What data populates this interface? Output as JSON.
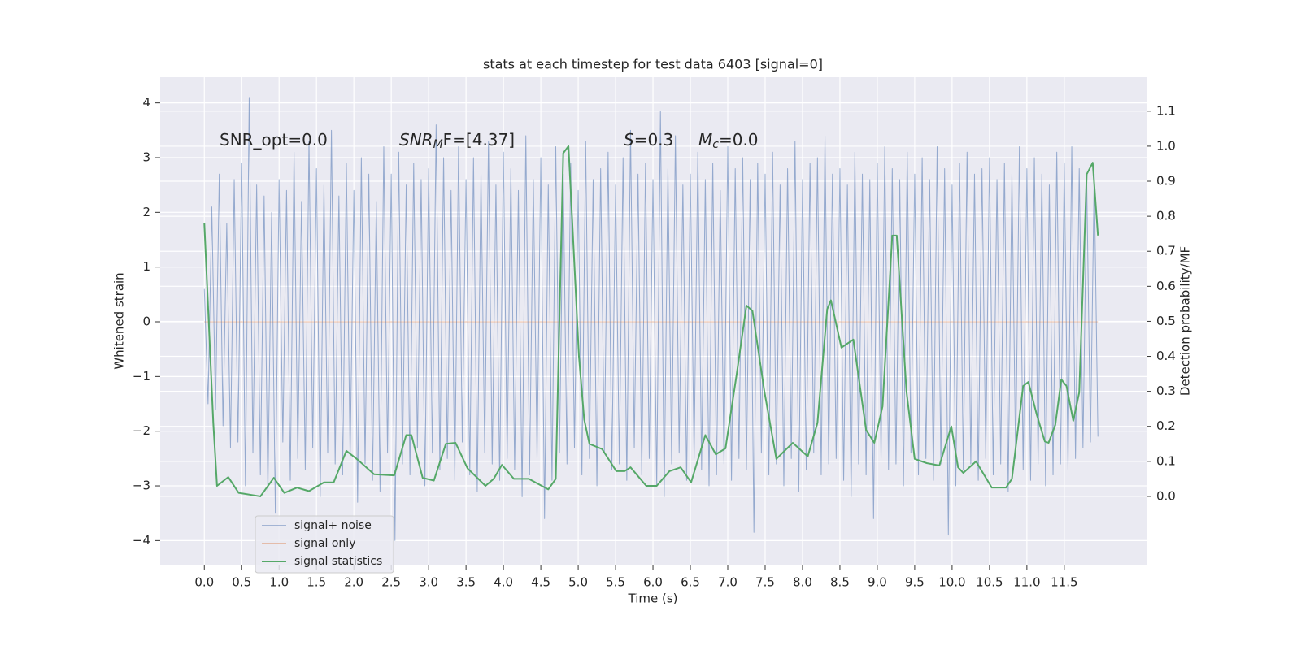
{
  "chart_data": {
    "type": "line",
    "title": "stats at each timestep for test data 6403 [signal=0]",
    "xlabel": "Time (s)",
    "ylabel": "Whitened strain",
    "y2label": "Detection probability/MF",
    "annotations": [
      {
        "base": "SNR_opt=0.0"
      },
      {
        "base": "SNR",
        "sub": "M",
        "rest": "F=[4.37]"
      },
      {
        "base": "S",
        "rest": "=0.3"
      },
      {
        "base": "M",
        "sub": "c",
        "rest": "=0.0"
      }
    ],
    "grid": true,
    "legend": "lower left",
    "xlim": [
      -0.59,
      12.6
    ],
    "ylim": [
      -4.44,
      4.47
    ],
    "y2lim": [
      -0.195,
      1.197
    ],
    "xticks": [
      {
        "value": 0,
        "label": "0.0"
      },
      {
        "value": 0.5,
        "label": "0.5"
      },
      {
        "value": 1,
        "label": "1.0"
      },
      {
        "value": 1.5,
        "label": "1.5"
      },
      {
        "value": 2,
        "label": "2.0"
      },
      {
        "value": 2.5,
        "label": "2.5"
      },
      {
        "value": 3,
        "label": "3.0"
      },
      {
        "value": 3.5,
        "label": "3.5"
      },
      {
        "value": 4,
        "label": "4.0"
      },
      {
        "value": 4.5,
        "label": "4.5"
      },
      {
        "value": 5,
        "label": "5.0"
      },
      {
        "value": 5.5,
        "label": "5.5"
      },
      {
        "value": 6,
        "label": "6.0"
      },
      {
        "value": 6.5,
        "label": "6.5"
      },
      {
        "value": 7,
        "label": "7.0"
      },
      {
        "value": 7.5,
        "label": "7.5"
      },
      {
        "value": 8,
        "label": "8.0"
      },
      {
        "value": 8.5,
        "label": "8.5"
      },
      {
        "value": 9,
        "label": "9.0"
      },
      {
        "value": 9.5,
        "label": "9.5"
      },
      {
        "value": 10,
        "label": "10.0"
      },
      {
        "value": 10.5,
        "label": "10.5"
      },
      {
        "value": 11,
        "label": "11.0"
      },
      {
        "value": 11.5,
        "label": "11.5"
      }
    ],
    "yticks": [
      {
        "value": -4,
        "label": "−4"
      },
      {
        "value": -3,
        "label": "−3"
      },
      {
        "value": -2,
        "label": "−2"
      },
      {
        "value": -1,
        "label": "−1"
      },
      0,
      1,
      2,
      3,
      4
    ],
    "y2ticks": [
      {
        "value": 0,
        "label": "0.0"
      },
      {
        "value": 0.1,
        "label": "0.1"
      },
      {
        "value": 0.2,
        "label": "0.2"
      },
      {
        "value": 0.3,
        "label": "0.3"
      },
      {
        "value": 0.4,
        "label": "0.4"
      },
      {
        "value": 0.5,
        "label": "0.5"
      },
      {
        "value": 0.6,
        "label": "0.6"
      },
      {
        "value": 0.7,
        "label": "0.7"
      },
      {
        "value": 0.8,
        "label": "0.8"
      },
      {
        "value": 0.9,
        "label": "0.9"
      },
      {
        "value": 1,
        "label": "1.0"
      },
      {
        "value": 1.1,
        "label": "1.1"
      }
    ],
    "series": [
      {
        "name": "signal+ noise",
        "color": "#4c72b0",
        "axis": "y",
        "x": [
          0,
          0.05,
          0.1,
          0.15,
          0.2,
          0.25,
          0.3,
          0.35,
          0.4,
          0.45,
          0.5,
          0.55,
          0.6,
          0.65,
          0.7,
          0.75,
          0.8,
          0.85,
          0.9,
          0.95,
          1,
          1.05,
          1.1,
          1.15,
          1.2,
          1.25,
          1.3,
          1.35,
          1.4,
          1.45,
          1.5,
          1.55,
          1.6,
          1.65,
          1.7,
          1.75,
          1.8,
          1.85,
          1.9,
          1.95,
          2,
          2.05,
          2.1,
          2.15,
          2.2,
          2.25,
          2.3,
          2.35,
          2.4,
          2.45,
          2.5,
          2.55,
          2.6,
          2.65,
          2.7,
          2.75,
          2.8,
          2.85,
          2.9,
          2.95,
          3,
          3.05,
          3.1,
          3.15,
          3.2,
          3.25,
          3.3,
          3.35,
          3.4,
          3.45,
          3.5,
          3.55,
          3.6,
          3.65,
          3.7,
          3.75,
          3.8,
          3.85,
          3.9,
          3.95,
          4,
          4.05,
          4.1,
          4.15,
          4.2,
          4.25,
          4.3,
          4.35,
          4.4,
          4.45,
          4.5,
          4.55,
          4.6,
          4.65,
          4.7,
          4.75,
          4.8,
          4.85,
          4.9,
          4.95,
          5,
          5.05,
          5.1,
          5.15,
          5.2,
          5.25,
          5.3,
          5.35,
          5.4,
          5.45,
          5.5,
          5.55,
          5.6,
          5.65,
          5.7,
          5.75,
          5.8,
          5.85,
          5.9,
          5.95,
          6,
          6.05,
          6.1,
          6.15,
          6.2,
          6.25,
          6.3,
          6.35,
          6.4,
          6.45,
          6.5,
          6.55,
          6.6,
          6.65,
          6.7,
          6.75,
          6.8,
          6.85,
          6.9,
          6.95,
          7,
          7.05,
          7.1,
          7.15,
          7.2,
          7.25,
          7.3,
          7.35,
          7.4,
          7.45,
          7.5,
          7.55,
          7.6,
          7.65,
          7.7,
          7.75,
          7.8,
          7.85,
          7.9,
          7.95,
          8,
          8.05,
          8.1,
          8.15,
          8.2,
          8.25,
          8.3,
          8.35,
          8.4,
          8.45,
          8.5,
          8.55,
          8.6,
          8.65,
          8.7,
          8.75,
          8.8,
          8.85,
          8.9,
          8.95,
          9,
          9.05,
          9.1,
          9.15,
          9.2,
          9.25,
          9.3,
          9.35,
          9.4,
          9.45,
          9.5,
          9.55,
          9.6,
          9.65,
          9.7,
          9.75,
          9.8,
          9.85,
          9.9,
          9.95,
          10,
          10.05,
          10.1,
          10.15,
          10.2,
          10.25,
          10.3,
          10.35,
          10.4,
          10.45,
          10.5,
          10.55,
          10.6,
          10.65,
          10.7,
          10.75,
          10.8,
          10.85,
          10.9,
          10.95,
          11,
          11.05,
          11.1,
          11.15,
          11.2,
          11.25,
          11.3,
          11.35,
          11.4,
          11.45,
          11.5,
          11.55,
          11.6,
          11.65,
          11.7,
          11.75,
          11.8,
          11.85,
          11.9,
          11.95
        ],
        "values": [
          0.6,
          -1.5,
          2.1,
          -1.6,
          2.7,
          -1.9,
          1.8,
          -2.3,
          2.6,
          -2.2,
          2.9,
          -3.0,
          4.1,
          -2.4,
          2.5,
          -2.8,
          2.3,
          -3.1,
          2.0,
          -3.5,
          2.6,
          -2.2,
          2.4,
          -2.9,
          3.1,
          -2.5,
          2.2,
          -2.7,
          3.3,
          -2.3,
          2.8,
          -3.2,
          2.5,
          -2.4,
          3.5,
          -2.6,
          2.3,
          -2.8,
          2.9,
          -2.5,
          2.4,
          -3.3,
          3.0,
          -2.6,
          2.7,
          -2.9,
          2.2,
          -3.1,
          3.2,
          -2.4,
          2.7,
          -4.0,
          3.1,
          -2.6,
          2.5,
          -2.8,
          2.9,
          -2.3,
          2.6,
          -3.0,
          2.8,
          -2.4,
          3.6,
          -2.7,
          3.0,
          -2.5,
          2.4,
          -2.9,
          3.2,
          -2.2,
          2.6,
          -2.8,
          3.0,
          -3.1,
          2.7,
          -2.4,
          3.3,
          -2.6,
          2.5,
          -2.9,
          3.1,
          -2.5,
          2.8,
          -2.7,
          2.4,
          -3.2,
          3.4,
          -2.8,
          2.6,
          -2.5,
          3.0,
          -3.6,
          2.5,
          -2.9,
          3.2,
          -2.4,
          2.7,
          -2.6,
          2.9,
          -2.3,
          2.4,
          -2.8,
          3.3,
          -2.5,
          2.6,
          -3.0,
          2.8,
          -2.4,
          3.1,
          -2.7,
          2.5,
          -2.6,
          3.0,
          -2.9,
          3.5,
          -2.3,
          2.7,
          -2.8,
          2.9,
          -2.5,
          2.6,
          -3.0,
          3.85,
          -3.2,
          2.8,
          -2.6,
          3.4,
          -2.4,
          2.5,
          -2.9,
          2.7,
          -2.5,
          3.1,
          -2.7,
          2.6,
          -3.0,
          2.9,
          -2.8,
          2.4,
          -2.6,
          3.2,
          -2.9,
          2.8,
          -2.5,
          3.0,
          -2.7,
          2.6,
          -3.85,
          2.9,
          -2.4,
          2.7,
          -2.8,
          3.1,
          -2.6,
          2.5,
          -3.0,
          2.8,
          -2.5,
          3.3,
          -3.1,
          2.6,
          -2.7,
          2.9,
          -2.4,
          3.0,
          -2.8,
          3.4,
          -2.6,
          2.7,
          -2.5,
          2.8,
          -2.9,
          2.5,
          -3.2,
          3.1,
          -2.6,
          2.7,
          -2.8,
          2.6,
          -3.6,
          2.9,
          -2.5,
          3.2,
          -2.7,
          2.8,
          -2.6,
          2.6,
          -3.0,
          3.1,
          -2.4,
          2.7,
          -2.8,
          3.0,
          -2.5,
          2.6,
          -2.9,
          3.2,
          -2.6,
          2.8,
          -3.9,
          2.5,
          -3.0,
          2.9,
          -2.7,
          3.1,
          -2.6,
          2.7,
          -2.9,
          2.8,
          -2.5,
          3.0,
          -2.8,
          2.6,
          -2.6,
          2.9,
          -3.1,
          2.7,
          -2.5,
          3.2,
          -2.7,
          2.8,
          -2.9,
          3.0,
          -2.6,
          2.7,
          -3.0,
          2.5,
          -2.8,
          3.1,
          -2.6,
          2.9,
          -2.7,
          3.2,
          -2.5,
          2.8,
          -2.3,
          2.6,
          -2.2,
          2.7,
          -2.1
        ]
      },
      {
        "name": "signal only",
        "color": "#dd8452",
        "axis": "y",
        "x": [
          0,
          11.95
        ],
        "values": [
          0,
          0
        ]
      },
      {
        "name": "signal statistics",
        "color": "#55a868",
        "axis": "y2",
        "x": [
          0,
          0.12,
          0.17,
          0.32,
          0.46,
          0.75,
          0.93,
          1.07,
          1.24,
          1.4,
          1.6,
          1.73,
          1.9,
          2.05,
          2.27,
          2.54,
          2.7,
          2.77,
          2.92,
          3.07,
          3.23,
          3.36,
          3.52,
          3.76,
          3.87,
          3.98,
          4.14,
          4.34,
          4.6,
          4.7,
          4.8,
          4.87,
          4.93,
          5.01,
          5.08,
          5.15,
          5.32,
          5.51,
          5.62,
          5.7,
          5.91,
          6.05,
          6.22,
          6.37,
          6.51,
          6.7,
          6.84,
          6.97,
          7.12,
          7.25,
          7.33,
          7.49,
          7.65,
          7.87,
          8.07,
          8.2,
          8.33,
          8.38,
          8.52,
          8.68,
          8.85,
          8.96,
          9.07,
          9.2,
          9.26,
          9.39,
          9.5,
          9.66,
          9.83,
          9.99,
          10.08,
          10.15,
          10.32,
          10.53,
          10.72,
          10.8,
          10.95,
          11.02,
          11.13,
          11.24,
          11.29,
          11.38,
          11.46,
          11.53,
          11.62,
          11.7,
          11.8,
          11.88,
          11.95
        ],
        "values": [
          0.78,
          0.21,
          0.03,
          0.055,
          0.01,
          0.0,
          0.053,
          0.01,
          0.025,
          0.015,
          0.04,
          0.04,
          0.13,
          0.105,
          0.063,
          0.06,
          0.175,
          0.175,
          0.053,
          0.045,
          0.15,
          0.153,
          0.08,
          0.03,
          0.05,
          0.09,
          0.05,
          0.05,
          0.02,
          0.05,
          0.98,
          1.0,
          0.745,
          0.4,
          0.22,
          0.15,
          0.135,
          0.072,
          0.072,
          0.083,
          0.03,
          0.03,
          0.072,
          0.083,
          0.04,
          0.175,
          0.12,
          0.137,
          0.35,
          0.545,
          0.53,
          0.3,
          0.107,
          0.153,
          0.114,
          0.21,
          0.535,
          0.56,
          0.425,
          0.448,
          0.19,
          0.153,
          0.257,
          0.745,
          0.745,
          0.3,
          0.107,
          0.095,
          0.088,
          0.2,
          0.083,
          0.067,
          0.1,
          0.025,
          0.025,
          0.05,
          0.315,
          0.327,
          0.235,
          0.157,
          0.153,
          0.204,
          0.334,
          0.315,
          0.216,
          0.297,
          0.92,
          0.953,
          0.745
        ]
      }
    ]
  }
}
